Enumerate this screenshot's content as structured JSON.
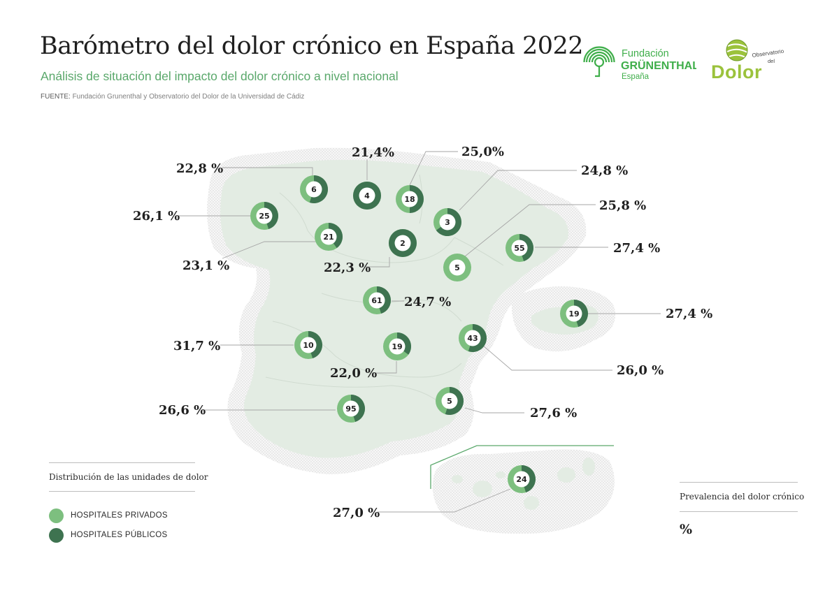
{
  "header": {
    "title": "Barómetro del dolor crónico en España 2022",
    "subtitle": "Análisis de situación del impacto del dolor crónico a nivel nacional",
    "source_label": "FUENTE:",
    "source_text": "Fundación Grunenthal y Observatorio del Dolor de la Universidad de Cádiz"
  },
  "logos": {
    "fundacion_line1": "Fundación",
    "fundacion_line2": "GRÜNENTHAL",
    "fundacion_line3": "España",
    "observatorio_line1": "Observatorio",
    "observatorio_line2": "del",
    "observatorio_line3": "Dolor"
  },
  "colors": {
    "private": "#7dbf7f",
    "public": "#3e7350",
    "map_fill": "#e3ece3",
    "accent_green": "#5aa86b"
  },
  "legend": {
    "distribution_title": "Distribución de las unidades de dolor",
    "private_label": "HOSPITALES PRIVADOS",
    "public_label": "HOSPITALES PÚBLICOS",
    "prevalence_title": "Prevalencia del dolor crónico",
    "prevalence_symbol": "%"
  },
  "regions": [
    {
      "id": "galicia",
      "units": "25",
      "public_share": 0.45,
      "prevalence": "26,1 %"
    },
    {
      "id": "asturias",
      "units": "6",
      "public_share": 0.55,
      "prevalence": "22,8 %"
    },
    {
      "id": "cantabria",
      "units": "4",
      "public_share": 1.0,
      "prevalence": "21,4%"
    },
    {
      "id": "pais-vasco",
      "units": "18",
      "public_share": 0.5,
      "prevalence": "25,0%"
    },
    {
      "id": "navarra",
      "units": "3",
      "public_share": 0.65,
      "prevalence": "24,8 %"
    },
    {
      "id": "castilla-leon",
      "units": "21",
      "public_share": 0.4,
      "prevalence": "23,1 %"
    },
    {
      "id": "la-rioja",
      "units": "2",
      "public_share": 1.0,
      "prevalence": "22,3 %"
    },
    {
      "id": "aragon",
      "units": "5",
      "public_share": 0.0,
      "prevalence": "25,8 %"
    },
    {
      "id": "cataluna",
      "units": "55",
      "public_share": 0.45,
      "prevalence": "27,4 %"
    },
    {
      "id": "madrid",
      "units": "61",
      "public_share": 0.45,
      "prevalence": "24,7 %"
    },
    {
      "id": "baleares",
      "units": "19",
      "public_share": 0.45,
      "prevalence": "27,4 %"
    },
    {
      "id": "extremadura",
      "units": "10",
      "public_share": 0.45,
      "prevalence": "31,7 %"
    },
    {
      "id": "castilla-la-mancha",
      "units": "19",
      "public_share": 0.35,
      "prevalence": "22,0 %"
    },
    {
      "id": "valencia",
      "units": "43",
      "public_share": 0.55,
      "prevalence": "26,0 %"
    },
    {
      "id": "andalucia",
      "units": "95",
      "public_share": 0.45,
      "prevalence": "26,6 %"
    },
    {
      "id": "murcia",
      "units": "5",
      "public_share": 0.55,
      "prevalence": "27,6 %"
    },
    {
      "id": "canarias",
      "units": "24",
      "public_share": 0.45,
      "prevalence": "27,0 %"
    }
  ]
}
